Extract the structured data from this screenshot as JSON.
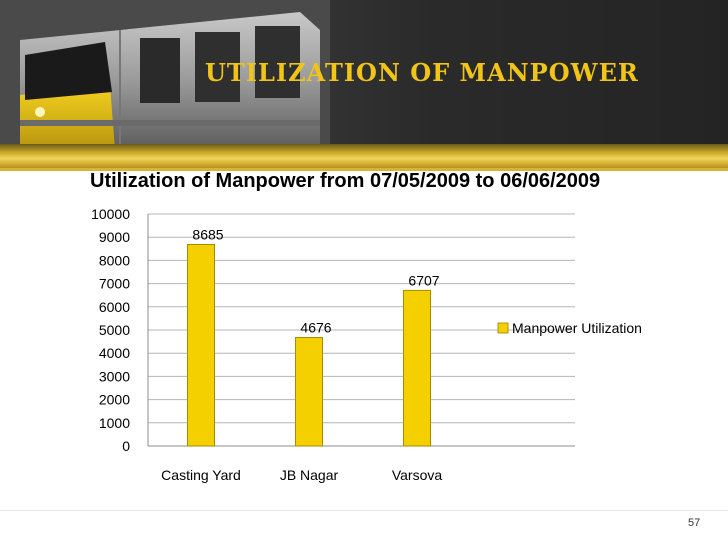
{
  "slide": {
    "title": "Utilization of Manpower",
    "page_number": "57"
  },
  "colors": {
    "accent_gold": "#f0c419",
    "bar_fill": "#f5d000",
    "header_dark": "#2a2a2a"
  },
  "chart_data": {
    "type": "bar",
    "title": "Utilization of Manpower from 07/05/2009 to 06/06/2009",
    "categories": [
      "Casting Yard",
      "JB Nagar",
      "Varsova"
    ],
    "series": [
      {
        "name": "Manpower Utilization",
        "values": [
          8685,
          4676,
          6707
        ]
      }
    ],
    "data_labels": [
      "8685",
      "4676",
      "6707"
    ],
    "y_ticks": [
      "0",
      "1000",
      "2000",
      "3000",
      "4000",
      "5000",
      "6000",
      "7000",
      "8000",
      "9000",
      "10000"
    ],
    "xlabel": "",
    "ylabel": "",
    "ylim": [
      0,
      10000
    ],
    "grid": true,
    "legend_position": "right"
  }
}
